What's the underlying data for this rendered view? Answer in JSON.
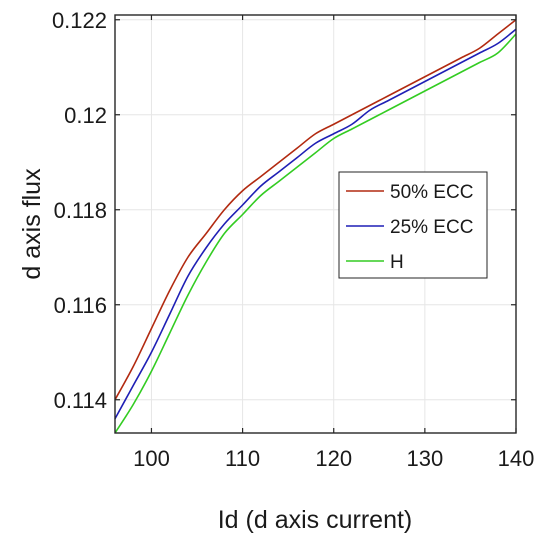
{
  "chart_data": {
    "type": "line",
    "title": "",
    "xlabel": "Id (d axis current)",
    "ylabel": "d axis flux",
    "xlim": [
      96,
      140
    ],
    "ylim": [
      0.1133,
      0.1221
    ],
    "xticks": [
      100,
      110,
      120,
      130,
      140
    ],
    "yticks": [
      0.114,
      0.116,
      0.118,
      0.12,
      0.122
    ],
    "xtick_labels": [
      "100",
      "110",
      "120",
      "130",
      "140"
    ],
    "ytick_labels": [
      "0.114",
      "0.116",
      "0.118",
      "0.12",
      "0.122"
    ],
    "grid": true,
    "legend_position": "right",
    "series": [
      {
        "name": "50% ECC",
        "color": "#b22a10",
        "x": [
          96,
          98,
          100,
          102,
          104,
          106,
          108,
          110,
          112,
          114,
          116,
          118,
          120,
          122,
          124,
          126,
          128,
          130,
          132,
          134,
          136,
          138,
          140
        ],
        "y": [
          0.114,
          0.1147,
          0.1155,
          0.1163,
          0.117,
          0.1175,
          0.118,
          0.1184,
          0.1187,
          0.119,
          0.1193,
          0.1196,
          0.1198,
          0.12,
          0.1202,
          0.1204,
          0.1206,
          0.1208,
          0.121,
          0.1212,
          0.1214,
          0.1217,
          0.122
        ]
      },
      {
        "name": "25% ECC",
        "color": "#1f1fb5",
        "x": [
          96,
          98,
          100,
          102,
          104,
          106,
          108,
          110,
          112,
          114,
          116,
          118,
          120,
          122,
          124,
          126,
          128,
          130,
          132,
          134,
          136,
          138,
          140
        ],
        "y": [
          0.1136,
          0.1143,
          0.115,
          0.1158,
          0.1166,
          0.1172,
          0.1177,
          0.1181,
          0.1185,
          0.1188,
          0.1191,
          0.1194,
          0.1196,
          0.1198,
          0.1201,
          0.1203,
          0.1205,
          0.1207,
          0.1209,
          0.1211,
          0.1213,
          0.1215,
          0.1218
        ]
      },
      {
        "name": "H",
        "color": "#33cc22",
        "x": [
          96,
          98,
          100,
          102,
          104,
          106,
          108,
          110,
          112,
          114,
          116,
          118,
          120,
          122,
          124,
          126,
          128,
          130,
          132,
          134,
          136,
          138,
          140
        ],
        "y": [
          0.1133,
          0.1139,
          0.1146,
          0.1154,
          0.1162,
          0.1169,
          0.1175,
          0.1179,
          0.1183,
          0.1186,
          0.1189,
          0.1192,
          0.1195,
          0.1197,
          0.1199,
          0.1201,
          0.1203,
          0.1205,
          0.1207,
          0.1209,
          0.1211,
          0.1213,
          0.1217
        ]
      }
    ]
  }
}
